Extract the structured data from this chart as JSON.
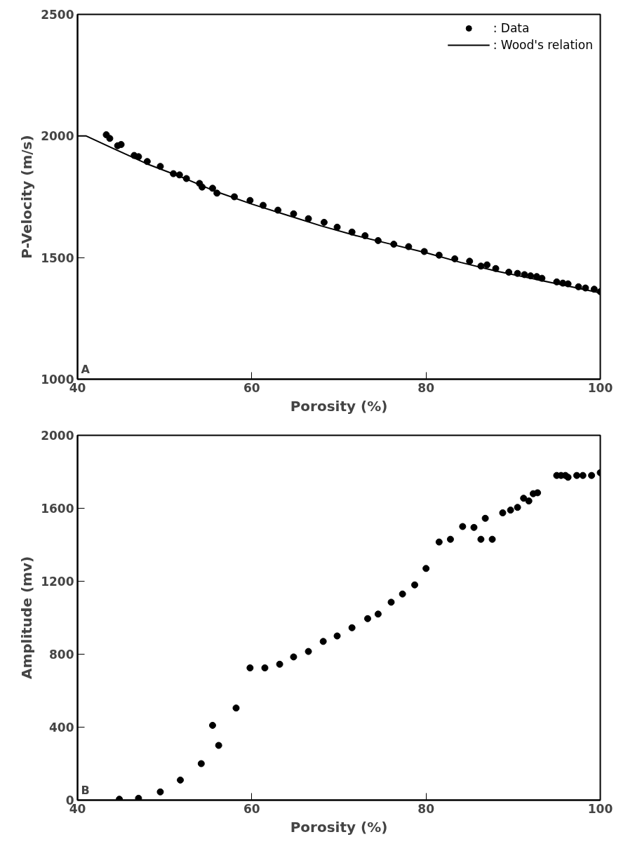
{
  "chart_data": [
    {
      "type": "scatter",
      "xlabel": "Porosity (%)",
      "ylabel": "P-Velocity (m/s)",
      "xlim": [
        40,
        100
      ],
      "ylim": [
        1000,
        2500
      ],
      "xticks": [
        40,
        60,
        80,
        100
      ],
      "yticks": [
        1000,
        1500,
        2000,
        2500
      ],
      "grid": false,
      "legend": "top right",
      "marker": "circle",
      "annotations": [
        "A"
      ],
      "series": [
        {
          "name": ": Data",
          "color": "#000000",
          "x": [
            43.3,
            43.7,
            44.6,
            45,
            46.5,
            47,
            48,
            49.5,
            51,
            51.7,
            52.5,
            54,
            54.3,
            55.5,
            56,
            58,
            59.8,
            61.3,
            63,
            64.8,
            66.5,
            68.3,
            69.8,
            71.5,
            73,
            74.5,
            76.3,
            78,
            79.8,
            81.5,
            83.3,
            85,
            86.3,
            87,
            88,
            89.5,
            90.5,
            91.3,
            92,
            92.7,
            93.3,
            95,
            95.7,
            96.3,
            97.5,
            98.3,
            99.3,
            100
          ],
          "values": [
            2005,
            1990,
            1960,
            1965,
            1920,
            1915,
            1895,
            1875,
            1845,
            1840,
            1825,
            1805,
            1790,
            1785,
            1765,
            1750,
            1735,
            1715,
            1695,
            1680,
            1660,
            1645,
            1625,
            1605,
            1590,
            1570,
            1555,
            1545,
            1525,
            1510,
            1495,
            1485,
            1465,
            1470,
            1455,
            1440,
            1435,
            1430,
            1425,
            1422,
            1415,
            1400,
            1395,
            1392,
            1380,
            1375,
            1370,
            1360
          ]
        },
        {
          "name": ": Wood's relation",
          "type": "line",
          "marker": "none",
          "line_style": "solid",
          "color": "#000000",
          "x": [
            40,
            41,
            44,
            48,
            52,
            56,
            60,
            64,
            68,
            72,
            76,
            80,
            84,
            88,
            92,
            96,
            100
          ],
          "values": [
            2000,
            2000,
            1950,
            1885,
            1830,
            1770,
            1720,
            1675,
            1630,
            1590,
            1555,
            1520,
            1480,
            1445,
            1415,
            1385,
            1355
          ]
        }
      ]
    },
    {
      "type": "scatter",
      "xlabel": "Porosity (%)",
      "ylabel": "Amplitude (mv)",
      "xlim": [
        40,
        100
      ],
      "ylim": [
        0,
        2000
      ],
      "xticks": [
        40,
        60,
        80,
        100
      ],
      "yticks": [
        0,
        400,
        800,
        1200,
        1600,
        2000
      ],
      "grid": false,
      "legend": false,
      "marker": "circle",
      "annotations": [
        "B"
      ],
      "series": [
        {
          "color": "#000000",
          "x": [
            44.8,
            47,
            49.5,
            51.8,
            54.2,
            55.5,
            56.2,
            58.2,
            59.8,
            61.5,
            63.2,
            64.8,
            66.5,
            68.2,
            69.8,
            71.5,
            73.3,
            74.5,
            76,
            77.3,
            78.7,
            80,
            81.5,
            82.8,
            84.2,
            85.5,
            86.3,
            86.8,
            87.6,
            88.8,
            89.7,
            90.5,
            91.2,
            91.8,
            92.3,
            92.8,
            95,
            95.5,
            96,
            96.3,
            97.3,
            98,
            99,
            100
          ],
          "values": [
            5,
            10,
            45,
            110,
            200,
            410,
            300,
            505,
            725,
            725,
            745,
            785,
            815,
            870,
            900,
            945,
            995,
            1020,
            1085,
            1130,
            1180,
            1270,
            1415,
            1430,
            1500,
            1495,
            1430,
            1545,
            1430,
            1575,
            1590,
            1605,
            1655,
            1640,
            1680,
            1685,
            1780,
            1780,
            1780,
            1770,
            1780,
            1780,
            1780,
            1795
          ]
        }
      ]
    }
  ]
}
